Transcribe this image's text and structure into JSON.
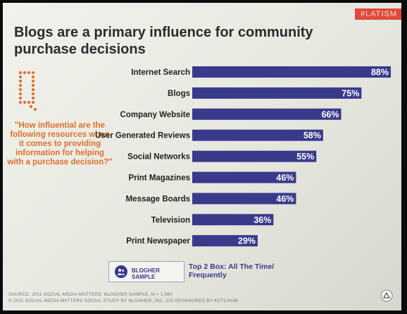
{
  "slide": {
    "tag": "#LATISM",
    "title": "Blogs are a primary influence for community purchase decisions",
    "question": "\"How influential are the following resources when it comes to providing information for helping with a purchase decision?\"",
    "legend_label": "BLOGHER SAMPLE",
    "legend_note": "Top 2 Box: All The Time/ Frequently",
    "source_line1": "SOURCE: 2011 SOCIAL MEDIA MATTERS: BLOGHER SAMPLE, N = 1,560",
    "source_line2": "© 2011 SOCIAL MEDIA MATTERS SOCIAL STUDY BY BLOGHER, INC. CO-SPONSORED BY KETCHUM"
  },
  "colors": {
    "bar": "#3a3a8c",
    "accent": "#e0702c",
    "tag": "#e04a3c"
  },
  "chart_data": {
    "type": "bar",
    "orientation": "horizontal",
    "categories": [
      "Internet Search",
      "Blogs",
      "Company Website",
      "User Generated Reviews",
      "Social Networks",
      "Print Magazines",
      "Message Boards",
      "Television",
      "Print Newspaper"
    ],
    "values": [
      88,
      75,
      66,
      58,
      55,
      46,
      46,
      36,
      29
    ],
    "data_labels": [
      "88%",
      "75%",
      "66%",
      "58%",
      "55%",
      "46%",
      "46%",
      "36%",
      "29%"
    ],
    "title": "",
    "xlabel": "",
    "ylabel": "",
    "xlim": [
      0,
      100
    ],
    "grid": false,
    "legend": "bottom-left"
  }
}
